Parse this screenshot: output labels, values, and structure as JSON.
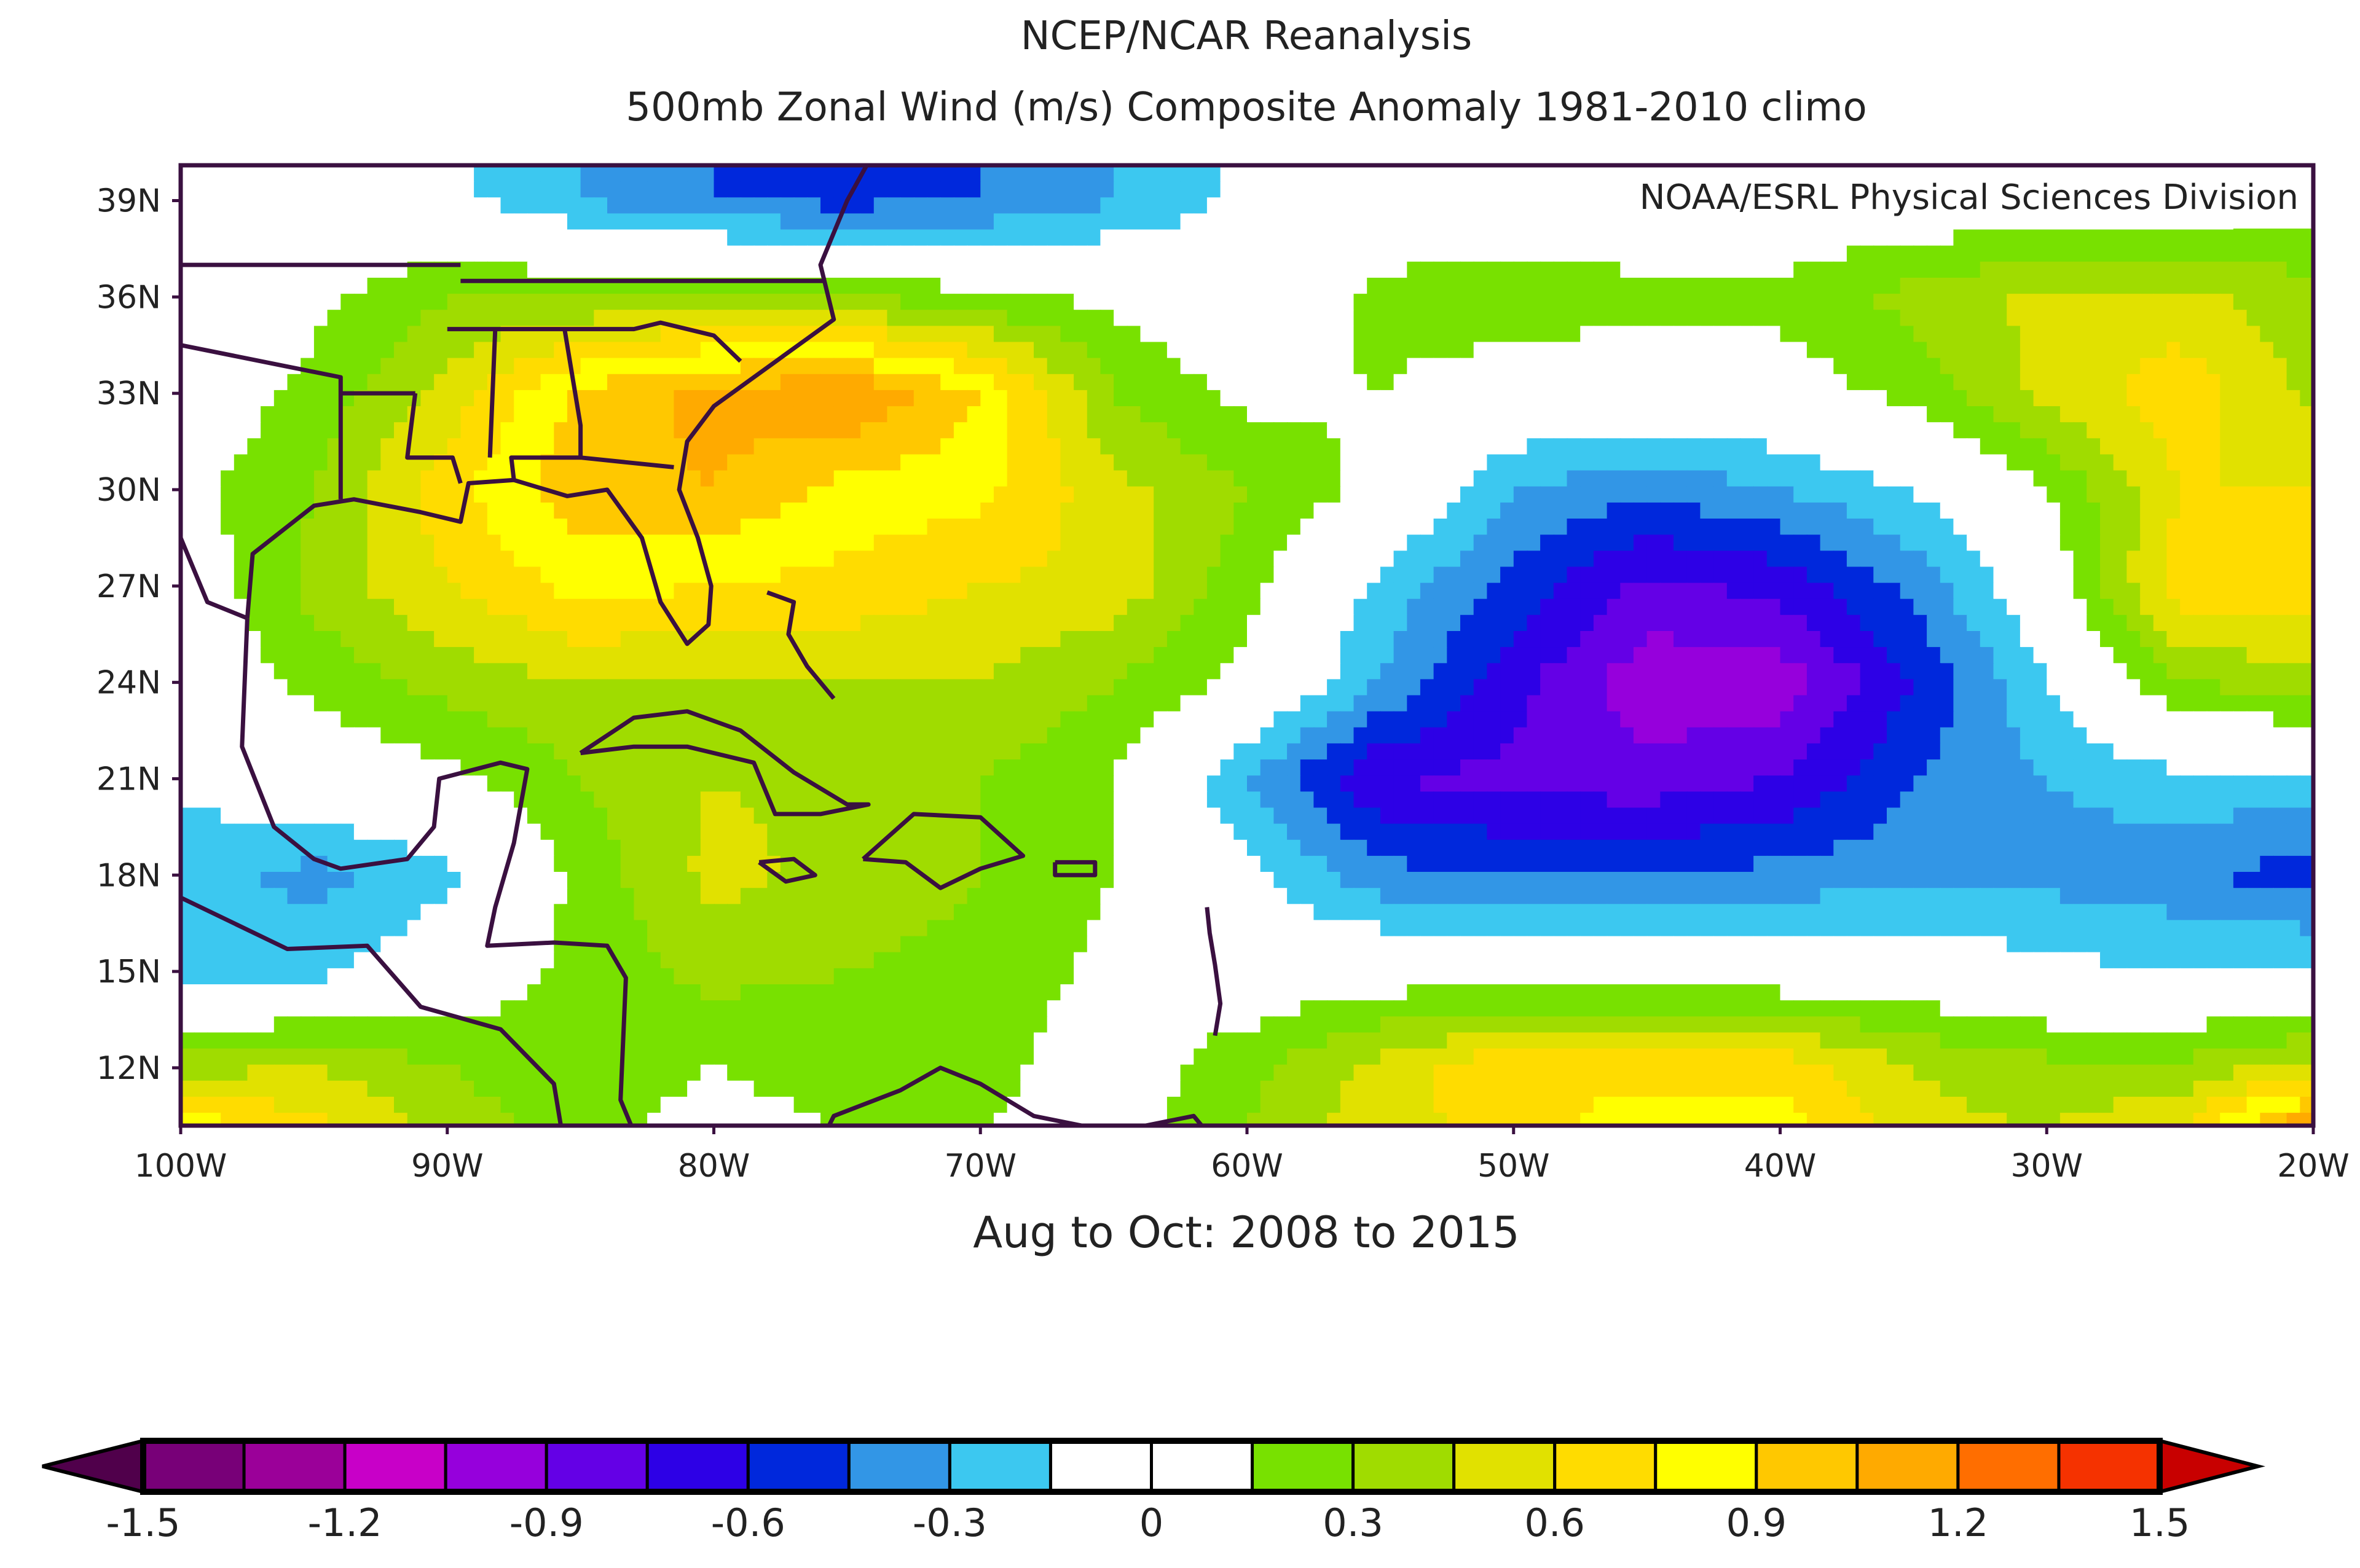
{
  "chart_data": {
    "type": "heatmap",
    "title": "NCEP/NCAR Reanalysis",
    "subtitle": "500mb Zonal Wind (m/s) Composite Anomaly 1981-2010 climo",
    "credit": "NOAA/ESRL Physical Sciences Division",
    "xlabel": "Aug to Oct: 2008 to 2015",
    "x_ticks": [
      "100W",
      "90W",
      "80W",
      "70W",
      "60W",
      "50W",
      "40W",
      "30W",
      "20W"
    ],
    "x_tick_values": [
      -100,
      -90,
      -80,
      -70,
      -60,
      -50,
      -40,
      -30,
      -20
    ],
    "y_ticks": [
      "39N",
      "36N",
      "33N",
      "30N",
      "27N",
      "24N",
      "21N",
      "18N",
      "15N",
      "12N"
    ],
    "y_tick_values": [
      39,
      36,
      33,
      30,
      27,
      24,
      21,
      18,
      15,
      12
    ],
    "xlim": [
      -100,
      -20
    ],
    "ylim": [
      10.2,
      40.1
    ],
    "grid_lons": [
      -100,
      -95,
      -90,
      -85,
      -80,
      -75,
      -70,
      -65,
      -60,
      -55,
      -50,
      -45,
      -40,
      -35,
      -30,
      -25,
      -20
    ],
    "grid_lats": [
      39,
      36,
      33,
      30,
      27,
      24,
      21,
      18,
      15,
      12,
      10
    ],
    "values": [
      [
        0,
        0,
        -0.1,
        -0.3,
        -0.45,
        -0.5,
        -0.45,
        -0.3,
        -0.1,
        0,
        0,
        0,
        0,
        0,
        0,
        0.05,
        0.1
      ],
      [
        0,
        0.1,
        0.3,
        0.3,
        0.35,
        0.3,
        0.2,
        0.1,
        0,
        0.2,
        0.25,
        0.2,
        0.2,
        0.35,
        0.5,
        0.5,
        0.35
      ],
      [
        0,
        0.2,
        0.5,
        0.95,
        1.1,
        1.2,
        0.9,
        0.3,
        0.1,
        0.15,
        0.05,
        0,
        0.05,
        0.2,
        0.5,
        0.7,
        0.4
      ],
      [
        0.1,
        0.3,
        0.7,
        1.0,
        1.05,
        0.85,
        0.8,
        0.5,
        0.3,
        0.1,
        -0.3,
        -0.4,
        -0.3,
        -0.15,
        0.15,
        0.6,
        0.6
      ],
      [
        0,
        0.35,
        0.6,
        0.8,
        0.75,
        0.7,
        0.6,
        0.55,
        0.2,
        -0.2,
        -0.5,
        -0.8,
        -0.7,
        -0.4,
        0,
        0.7,
        0.7
      ],
      [
        0,
        0.2,
        0.35,
        0.45,
        0.45,
        0.45,
        0.45,
        0.3,
        0.1,
        -0.3,
        -0.7,
        -1.0,
        -1.0,
        -0.6,
        -0.15,
        0.3,
        0.4
      ],
      [
        -0.1,
        0,
        0.1,
        0.3,
        0.45,
        0.4,
        0.3,
        0.15,
        -0.3,
        -0.75,
        -0.8,
        -0.85,
        -0.75,
        -0.45,
        -0.3,
        -0.2,
        -0.2
      ],
      [
        -0.25,
        -0.35,
        -0.2,
        0.2,
        0.5,
        0.4,
        0.3,
        0.15,
        -0.1,
        -0.4,
        -0.45,
        -0.45,
        -0.4,
        -0.35,
        -0.35,
        -0.4,
        -0.55
      ],
      [
        -0.2,
        -0.2,
        0,
        0.2,
        0.35,
        0.3,
        0.25,
        0.1,
        0,
        0.05,
        0,
        0,
        0,
        0,
        -0.1,
        -0.15,
        -0.1
      ],
      [
        0.4,
        0.45,
        0.3,
        0.2,
        0.15,
        0.2,
        0.2,
        0.05,
        0.25,
        0.5,
        0.75,
        0.7,
        0.7,
        0.45,
        0.35,
        0.35,
        0.5
      ],
      [
        0.9,
        0.65,
        0.4,
        0.2,
        0.1,
        0.15,
        0.15,
        0.05,
        0.3,
        0.55,
        0.65,
        0.85,
        0.85,
        0.5,
        0.45,
        0.6,
        1.3
      ]
    ],
    "colorbar": {
      "levels": [
        -1.5,
        -1.35,
        -1.2,
        -1.05,
        -0.9,
        -0.75,
        -0.6,
        -0.45,
        -0.3,
        -0.15,
        0,
        0.15,
        0.3,
        0.45,
        0.6,
        0.75,
        0.9,
        1.05,
        1.2,
        1.35,
        1.5
      ],
      "tick_labels": [
        "-1.5",
        "-1.2",
        "-0.9",
        "-0.6",
        "-0.3",
        "0",
        "0.3",
        "0.6",
        "0.9",
        "1.2",
        "1.5"
      ],
      "colors": [
        "#780078",
        "#9b0099",
        "#c800c8",
        "#9600dc",
        "#6400e6",
        "#2d00e6",
        "#0028dc",
        "#3296e6",
        "#3cc8f0",
        "#ffffff",
        "#ffffff",
        "#78e100",
        "#a0dc00",
        "#e1e100",
        "#ffdc00",
        "#ffff00",
        "#ffc800",
        "#ffaa00",
        "#ff6e00",
        "#f53200"
      ],
      "under_color": "#50004b",
      "over_color": "#c80000"
    }
  }
}
